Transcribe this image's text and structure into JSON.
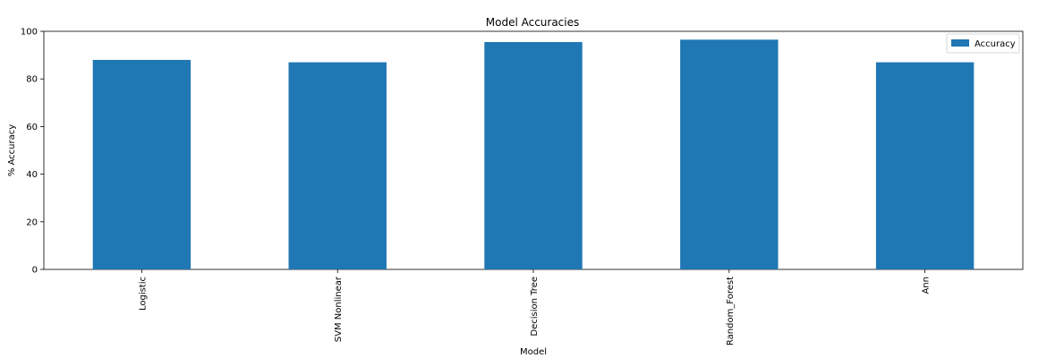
{
  "chart_data": {
    "type": "bar",
    "title": "Model Accuracies",
    "xlabel": "Model",
    "ylabel": "% Accuracy",
    "categories": [
      "Logistic",
      "SVM Nonlinear",
      "Decision Tree",
      "Random_Forest",
      "Ann"
    ],
    "series": [
      {
        "name": "Accuracy",
        "values": [
          88,
          87,
          95.5,
          96.5,
          87
        ]
      }
    ],
    "ylim": [
      0,
      100
    ],
    "yticks": [
      "0",
      "20",
      "40",
      "60",
      "80",
      "100"
    ],
    "grid": false,
    "legend": "top-right",
    "bar_color": "#1f77b4"
  }
}
